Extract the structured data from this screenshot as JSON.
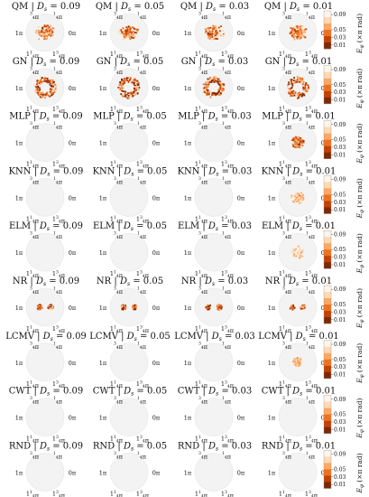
{
  "figure": {
    "models": [
      "QM",
      "GN",
      "MLP",
      "KNN",
      "ELM",
      "NR",
      "LCMV",
      "CWT",
      "RND"
    ],
    "noise_label": "D",
    "noise_sub": "s",
    "noise_levels": [
      "0.09",
      "0.05",
      "0.03",
      "0.01"
    ]
  },
  "chart_data": {
    "type": "heatmap",
    "projection": "polar",
    "angular_tick_labels": {
      "top_left": "3/4π",
      "top_right": "1/4π",
      "left": "1π",
      "right": "0π",
      "bottom_left": "1 1/4π",
      "bottom_right": "1 3/4π"
    },
    "colorbar": {
      "label": "E_φ (×π rad)",
      "ticks": [
        0.09,
        0.05,
        0.03,
        0.01
      ],
      "range": [
        0,
        0.1
      ],
      "colormap": "Oranges",
      "colors": [
        "#fff5eb",
        "#fdd9b4",
        "#fda762",
        "#f3701b",
        "#c54102",
        "#7f2704"
      ]
    },
    "panels": [
      {
        "model": "QM",
        "ds": 0.09,
        "intensity": 0.85,
        "pattern": "central cluster"
      },
      {
        "model": "QM",
        "ds": 0.05,
        "intensity": 0.8,
        "pattern": "central cluster"
      },
      {
        "model": "QM",
        "ds": 0.03,
        "intensity": 0.8,
        "pattern": "central cluster"
      },
      {
        "model": "QM",
        "ds": 0.01,
        "intensity": 0.75,
        "pattern": "central cluster"
      },
      {
        "model": "GN",
        "ds": 0.09,
        "intensity": 1.0,
        "pattern": "ring"
      },
      {
        "model": "GN",
        "ds": 0.05,
        "intensity": 1.0,
        "pattern": "ring"
      },
      {
        "model": "GN",
        "ds": 0.03,
        "intensity": 1.0,
        "pattern": "ring"
      },
      {
        "model": "GN",
        "ds": 0.01,
        "intensity": 0.95,
        "pattern": "ring"
      },
      {
        "model": "MLP",
        "ds": 0.09,
        "intensity": 0,
        "pattern": "none"
      },
      {
        "model": "MLP",
        "ds": 0.05,
        "intensity": 0,
        "pattern": "none"
      },
      {
        "model": "MLP",
        "ds": 0.03,
        "intensity": 0,
        "pattern": "none"
      },
      {
        "model": "MLP",
        "ds": 0.01,
        "intensity": 0.9,
        "pattern": "blob"
      },
      {
        "model": "KNN",
        "ds": 0.09,
        "intensity": 0,
        "pattern": "none"
      },
      {
        "model": "KNN",
        "ds": 0.05,
        "intensity": 0,
        "pattern": "none"
      },
      {
        "model": "KNN",
        "ds": 0.03,
        "intensity": 0,
        "pattern": "none"
      },
      {
        "model": "KNN",
        "ds": 0.01,
        "intensity": 0.35,
        "pattern": "faint"
      },
      {
        "model": "ELM",
        "ds": 0.09,
        "intensity": 0,
        "pattern": "none"
      },
      {
        "model": "ELM",
        "ds": 0.05,
        "intensity": 0,
        "pattern": "none"
      },
      {
        "model": "ELM",
        "ds": 0.03,
        "intensity": 0,
        "pattern": "none"
      },
      {
        "model": "ELM",
        "ds": 0.01,
        "intensity": 0.25,
        "pattern": "faint"
      },
      {
        "model": "NR",
        "ds": 0.09,
        "intensity": 0.9,
        "pattern": "two lobes"
      },
      {
        "model": "NR",
        "ds": 0.05,
        "intensity": 0.85,
        "pattern": "two lobes"
      },
      {
        "model": "NR",
        "ds": 0.03,
        "intensity": 0.85,
        "pattern": "two lobes"
      },
      {
        "model": "NR",
        "ds": 0.01,
        "intensity": 0.85,
        "pattern": "two lobes"
      },
      {
        "model": "LCMV",
        "ds": 0.09,
        "intensity": 0,
        "pattern": "none"
      },
      {
        "model": "LCMV",
        "ds": 0.05,
        "intensity": 0,
        "pattern": "none"
      },
      {
        "model": "LCMV",
        "ds": 0.03,
        "intensity": 0,
        "pattern": "none"
      },
      {
        "model": "LCMV",
        "ds": 0.01,
        "intensity": 0.35,
        "pattern": "disc"
      },
      {
        "model": "CWT",
        "ds": 0.09,
        "intensity": 0,
        "pattern": "none"
      },
      {
        "model": "CWT",
        "ds": 0.05,
        "intensity": 0,
        "pattern": "none"
      },
      {
        "model": "CWT",
        "ds": 0.03,
        "intensity": 0,
        "pattern": "none"
      },
      {
        "model": "CWT",
        "ds": 0.01,
        "intensity": 0,
        "pattern": "none"
      },
      {
        "model": "RND",
        "ds": 0.09,
        "intensity": 0,
        "pattern": "none"
      },
      {
        "model": "RND",
        "ds": 0.05,
        "intensity": 0,
        "pattern": "none"
      },
      {
        "model": "RND",
        "ds": 0.03,
        "intensity": 0,
        "pattern": "none"
      },
      {
        "model": "RND",
        "ds": 0.01,
        "intensity": 0,
        "pattern": "none"
      }
    ]
  }
}
